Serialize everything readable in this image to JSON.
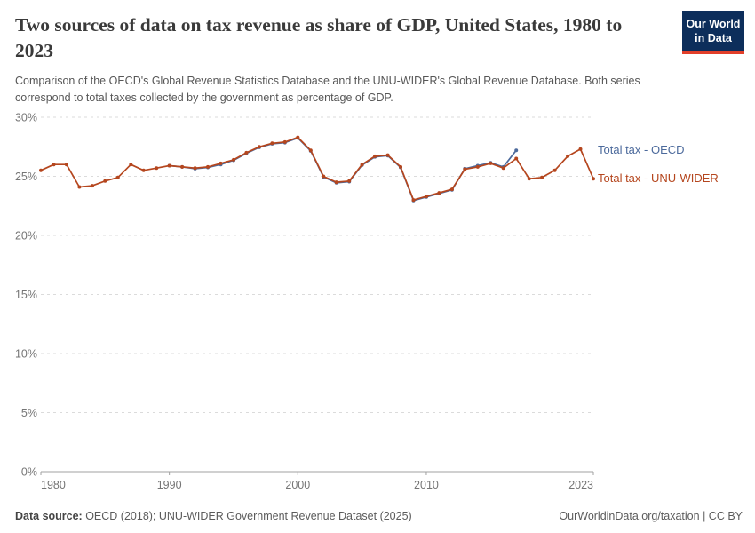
{
  "header": {
    "title": "Two sources of data on tax revenue as share of GDP, United States, 1980 to 2023",
    "subtitle": "Comparison of the OECD's Global Revenue Statistics Database and the UNU-WIDER's Global Revenue Database. Both series correspond to total taxes collected by the government as percentage of GDP.",
    "logo": {
      "line1": "Our World",
      "line2": "in Data",
      "bg": "#0d2e5b",
      "accent": "#e23f2a"
    }
  },
  "chart_data": {
    "type": "line",
    "title": "Two sources of data on tax revenue as share of GDP, United States, 1980 to 2023",
    "ylabel": "",
    "xlabel": "",
    "y_tick_suffix": "%",
    "ylim": [
      0,
      30
    ],
    "xlim": [
      1980,
      2023
    ],
    "y_ticks": [
      0,
      5,
      10,
      15,
      20,
      25,
      30
    ],
    "x_ticks": [
      1980,
      1990,
      2000,
      2010,
      2023
    ],
    "grid": "horizontal-dashed",
    "legend_position": "right",
    "x": [
      1980,
      1981,
      1982,
      1983,
      1984,
      1985,
      1986,
      1987,
      1988,
      1989,
      1990,
      1991,
      1992,
      1993,
      1994,
      1995,
      1996,
      1997,
      1998,
      1999,
      2000,
      2001,
      2002,
      2003,
      2004,
      2005,
      2006,
      2007,
      2008,
      2009,
      2010,
      2011,
      2012,
      2013,
      2014,
      2015,
      2016,
      2017,
      2018,
      2019,
      2020,
      2021,
      2022,
      2023
    ],
    "series": [
      {
        "name": "Total tax - OECD",
        "color": "#4C6A9C",
        "values": [
          null,
          null,
          null,
          null,
          null,
          null,
          null,
          null,
          null,
          null,
          25.9,
          25.8,
          25.65,
          25.75,
          26.0,
          26.35,
          26.95,
          27.45,
          27.75,
          27.85,
          28.25,
          27.15,
          24.95,
          24.45,
          24.55,
          25.95,
          26.65,
          26.75,
          25.75,
          22.95,
          23.25,
          23.55,
          23.85,
          25.65,
          25.9,
          26.15,
          25.8,
          27.2,
          null,
          null,
          null,
          null,
          null,
          null
        ]
      },
      {
        "name": "Total tax - UNU-WIDER",
        "color": "#B5461E",
        "values": [
          25.5,
          26.0,
          26.0,
          24.1,
          24.2,
          24.6,
          24.9,
          26.0,
          25.5,
          25.7,
          25.9,
          25.8,
          25.7,
          25.8,
          26.1,
          26.4,
          27.0,
          27.5,
          27.8,
          27.9,
          28.3,
          27.2,
          25.0,
          24.5,
          24.6,
          26.0,
          26.7,
          26.8,
          25.8,
          23.0,
          23.3,
          23.6,
          23.9,
          25.6,
          25.8,
          26.1,
          25.7,
          26.5,
          24.8,
          24.9,
          25.5,
          26.7,
          27.3,
          24.8
        ]
      }
    ],
    "axis_color": "#a0a0a0",
    "grid_color": "#dbdbdb",
    "tick_label_color": "#757575"
  },
  "footer": {
    "datasource_label": "Data source:",
    "datasource_value": " OECD (2018); UNU-WIDER Government Revenue Dataset (2025)",
    "attribution_link": "OurWorldinData.org/taxation",
    "attribution_license": " | CC BY"
  }
}
